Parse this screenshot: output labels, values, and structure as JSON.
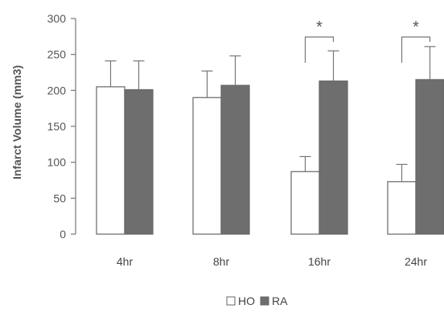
{
  "chart_data": {
    "type": "bar",
    "title": "",
    "xlabel": "",
    "ylabel": "Infarct Volume (mm3)",
    "ylim": [
      0,
      300
    ],
    "yticks": [
      0,
      50,
      100,
      150,
      200,
      250,
      300
    ],
    "categories": [
      "4hr",
      "8hr",
      "16hr",
      "24hr"
    ],
    "series": [
      {
        "name": "HO",
        "color": "#ffffff",
        "values": [
          205,
          190,
          87,
          73
        ],
        "errors": [
          36,
          37,
          21,
          24
        ]
      },
      {
        "name": "RA",
        "color": "#6e6e6e",
        "values": [
          201,
          207,
          213,
          215
        ],
        "errors": [
          40,
          41,
          42,
          46
        ]
      }
    ],
    "annotations": [
      {
        "category": "16hr",
        "text": "*"
      },
      {
        "category": "24hr",
        "text": "*"
      }
    ],
    "legend": {
      "position": "bottom-center"
    },
    "grid": false
  }
}
